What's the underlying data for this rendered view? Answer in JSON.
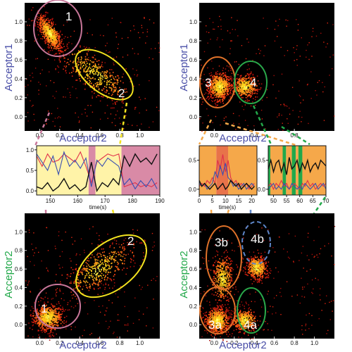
{
  "colors": {
    "acceptor1_label": "#4a4fa8",
    "acceptor2_label_blue": "#4a4fa8",
    "acceptor2_label_green": "#22a84a",
    "cluster1": "#c9779a",
    "cluster2": "#f2e21f",
    "cluster3": "#e0722a",
    "cluster4": "#2aa84a",
    "cluster4b": "#5e86c8",
    "trace_red": "#e0304a",
    "trace_blue": "#3a4fb0",
    "trace_black": "#111111"
  },
  "chart_data": [
    {
      "id": "panel-a",
      "type": "scatter",
      "xlabel": "Acceptor2",
      "ylabel": "Acceptor1",
      "xticks": [
        "0.0",
        "0.2",
        "0.4",
        "0.6",
        "0.8",
        "1.0"
      ],
      "yticks": [
        "0.0",
        "0.2",
        "0.4",
        "0.6",
        "0.8",
        "1.0"
      ],
      "xlim": [
        -0.15,
        1.2
      ],
      "ylim": [
        -0.15,
        1.2
      ],
      "clusters": [
        {
          "label": "1",
          "x": 0.1,
          "y": 0.88,
          "sx": 0.06,
          "sy": 0.09
        },
        {
          "label": "2",
          "x": 0.55,
          "y": 0.45,
          "sx": 0.17,
          "sy": 0.14
        }
      ]
    },
    {
      "id": "panel-b",
      "type": "scatter",
      "xlabel": "Acceptor2",
      "ylabel": "Acceptor1",
      "xticks": [
        "0.0",
        "0.4",
        "0.8"
      ],
      "yticks": [
        "0.0",
        "0.2",
        "0.4",
        "0.6",
        "0.8",
        "1.0"
      ],
      "xlim": [
        -0.15,
        1.2
      ],
      "ylim": [
        -0.15,
        1.2
      ],
      "clusters": [
        {
          "label": "3",
          "x": 0.05,
          "y": 0.32,
          "sx": 0.06,
          "sy": 0.07
        },
        {
          "label": "4",
          "x": 0.3,
          "y": 0.32,
          "sx": 0.06,
          "sy": 0.06
        }
      ]
    },
    {
      "id": "trace-1",
      "type": "line",
      "xlabel": "time(s)",
      "xticks": [
        "150",
        "160",
        "170",
        "180",
        "190"
      ],
      "xlim": [
        145,
        190
      ],
      "yticks": [
        "0.0",
        "0.5",
        "1.0"
      ],
      "ylim": [
        -0.1,
        1.1
      ],
      "series": [
        {
          "color": "#e0304a",
          "x": [
            145,
            147,
            149,
            151,
            153,
            155,
            157,
            159,
            161,
            163,
            165,
            167,
            169,
            171,
            173,
            175,
            177,
            179,
            181,
            183,
            185,
            187,
            189
          ],
          "y": [
            0.85,
            0.6,
            0.9,
            0.7,
            0.75,
            0.9,
            0.8,
            0.7,
            0.95,
            0.6,
            0.2,
            0.7,
            0.8,
            0.9,
            0.85,
            0.9,
            0.1,
            0.15,
            0.2,
            0.1,
            0.15,
            0.1,
            0.2
          ]
        },
        {
          "color": "#3a4fb0",
          "x": [
            145,
            147,
            149,
            151,
            153,
            155,
            157,
            159,
            161,
            163,
            165,
            167,
            169,
            171,
            173,
            175,
            177,
            179,
            181,
            183,
            185,
            187,
            189
          ],
          "y": [
            0.9,
            0.7,
            0.5,
            0.85,
            0.4,
            0.95,
            0.6,
            0.75,
            0.55,
            0.8,
            0.1,
            0.75,
            0.6,
            0.8,
            0.7,
            0.6,
            0.15,
            0.3,
            0.05,
            0.25,
            0.1,
            0.3,
            0.05
          ]
        },
        {
          "color": "#111111",
          "x": [
            145,
            147,
            149,
            151,
            153,
            155,
            157,
            159,
            161,
            163,
            165,
            167,
            169,
            171,
            173,
            175,
            177,
            179,
            181,
            183,
            185,
            187,
            189
          ],
          "y": [
            0.1,
            0.05,
            0.2,
            0.0,
            0.1,
            0.3,
            0.05,
            0.15,
            0.0,
            0.1,
            0.7,
            0.0,
            0.2,
            0.1,
            0.3,
            0.15,
            0.85,
            0.6,
            0.9,
            0.7,
            0.8,
            0.65,
            0.9
          ]
        }
      ],
      "shaded": [
        {
          "from": 145,
          "to": 164,
          "color": "#fff3a8"
        },
        {
          "from": 164,
          "to": 166.5,
          "color": "#d98aa6"
        },
        {
          "from": 166.5,
          "to": 176,
          "color": "#fff3a8"
        },
        {
          "from": 176,
          "to": 190,
          "color": "#d98aa6"
        }
      ]
    },
    {
      "id": "trace-2",
      "type": "line",
      "xlabel": "time(s)",
      "xticks": [
        "0",
        "5",
        "10",
        "15",
        "20"
      ],
      "xlim": [
        0,
        22
      ],
      "yticks": [
        "0.0",
        "0.5"
      ],
      "ylim": [
        -0.1,
        0.75
      ],
      "series": [
        {
          "color": "#e0304a",
          "x": [
            0,
            1,
            2,
            3,
            4,
            5,
            6,
            7,
            8,
            9,
            10,
            11,
            12,
            13,
            14,
            15,
            16,
            17,
            18,
            19,
            20,
            21
          ],
          "y": [
            0.05,
            0.1,
            0.05,
            0.15,
            0.1,
            0.2,
            0.1,
            0.5,
            0.35,
            0.6,
            0.3,
            0.5,
            0.2,
            0.1,
            0.15,
            0.05,
            0.1,
            0.05,
            0.1,
            0.0,
            0.05,
            0.1
          ]
        },
        {
          "color": "#3a4fb0",
          "x": [
            0,
            1,
            2,
            3,
            4,
            5,
            6,
            7,
            8,
            9,
            10,
            11,
            12,
            13,
            14,
            15,
            16,
            17,
            18,
            19,
            20,
            21
          ],
          "y": [
            0.1,
            0.05,
            0.1,
            0.0,
            0.05,
            0.1,
            0.3,
            0.2,
            0.4,
            0.25,
            0.45,
            0.2,
            0.15,
            0.05,
            0.1,
            0.0,
            0.05,
            0.1,
            0.0,
            0.05,
            0.1,
            0.05
          ]
        },
        {
          "color": "#111111",
          "x": [
            0,
            1,
            2,
            3,
            4,
            5,
            6,
            7,
            8,
            9,
            10,
            11,
            12,
            13,
            14,
            15,
            16,
            17,
            18,
            19,
            20,
            21
          ],
          "y": [
            0.15,
            0.05,
            0.1,
            0.05,
            0.0,
            0.05,
            0.1,
            0.0,
            0.05,
            0.1,
            0.0,
            0.05,
            0.15,
            0.1,
            0.05,
            0.1,
            0.0,
            0.05,
            0.1,
            0.05,
            0.0,
            0.05
          ]
        }
      ],
      "shaded": [
        {
          "from": 0,
          "to": 6.5,
          "color": "#f5a84a"
        },
        {
          "from": 6.5,
          "to": 11,
          "color": "#e8734a"
        },
        {
          "from": 11,
          "to": 22,
          "color": "#f5a84a"
        }
      ]
    },
    {
      "id": "trace-3",
      "type": "line",
      "xlabel": "",
      "xticks": [
        "50",
        "55",
        "60",
        "65",
        "70"
      ],
      "xlim": [
        48,
        70
      ],
      "yticks": [
        "0.0",
        "0.5"
      ],
      "ylim": [
        -0.1,
        0.75
      ],
      "series": [
        {
          "color": "#e0304a",
          "x": [
            48,
            49,
            50,
            51,
            52,
            53,
            54,
            55,
            56,
            57,
            58,
            59,
            60,
            61,
            62,
            63,
            64,
            65,
            66,
            67,
            68,
            69,
            70
          ],
          "y": [
            0.05,
            0.1,
            0.0,
            0.1,
            0.05,
            0.15,
            0.05,
            0.1,
            0.0,
            0.05,
            0.1,
            0.05,
            0.0,
            0.1,
            0.05,
            0.15,
            0.05,
            0.1,
            0.0,
            0.05,
            0.1,
            0.05,
            0.1
          ]
        },
        {
          "color": "#3a4fb0",
          "x": [
            48,
            49,
            50,
            51,
            52,
            53,
            54,
            55,
            56,
            57,
            58,
            59,
            60,
            61,
            62,
            63,
            64,
            65,
            66,
            67,
            68,
            69,
            70
          ],
          "y": [
            0.0,
            0.05,
            0.1,
            0.0,
            0.05,
            0.0,
            0.1,
            0.05,
            0.0,
            0.1,
            0.05,
            0.0,
            0.05,
            0.0,
            0.1,
            0.05,
            0.0,
            0.05,
            0.1,
            0.0,
            0.05,
            0.1,
            0.0
          ]
        },
        {
          "color": "#111111",
          "x": [
            48,
            49,
            50,
            51,
            52,
            53,
            54,
            55,
            56,
            57,
            58,
            59,
            60,
            61,
            62,
            63,
            64,
            65,
            66,
            67,
            68,
            69,
            70
          ],
          "y": [
            0.35,
            0.5,
            0.3,
            0.45,
            0.5,
            0.3,
            0.45,
            0.25,
            0.55,
            0.35,
            0.4,
            0.5,
            0.3,
            0.45,
            0.35,
            0.5,
            0.3,
            0.4,
            0.45,
            0.35,
            0.5,
            0.45,
            0.4
          ]
        }
      ],
      "shaded": [
        {
          "from": 48,
          "to": 48.8,
          "color": "#22a84a"
        },
        {
          "from": 48.8,
          "to": 53.5,
          "color": "#f5a84a"
        },
        {
          "from": 53.5,
          "to": 54.8,
          "color": "#22a84a"
        },
        {
          "from": 54.8,
          "to": 57,
          "color": "#f5a84a"
        },
        {
          "from": 57,
          "to": 58.5,
          "color": "#22a84a"
        },
        {
          "from": 58.5,
          "to": 59.5,
          "color": "#f5a84a"
        },
        {
          "from": 59.5,
          "to": 61,
          "color": "#22a84a"
        },
        {
          "from": 61,
          "to": 70,
          "color": "#f5a84a"
        }
      ]
    },
    {
      "id": "panel-c",
      "type": "scatter",
      "xlabel": "Acceptor2",
      "ylabel": "Acceptor2",
      "xticks": [
        "0.0",
        "0.2",
        "0.4",
        "0.6",
        "0.8",
        "1.0"
      ],
      "yticks": [
        "0.0",
        "0.2",
        "0.4",
        "0.6",
        "0.8",
        "1.0"
      ],
      "xlim": [
        -0.15,
        1.2
      ],
      "ylim": [
        -0.15,
        1.2
      ],
      "clusters": [
        {
          "label": "1",
          "x": 0.08,
          "y": 0.08,
          "sx": 0.07,
          "sy": 0.07
        },
        {
          "label": "2",
          "x": 0.58,
          "y": 0.6,
          "sx": 0.17,
          "sy": 0.14
        }
      ]
    },
    {
      "id": "panel-d",
      "type": "scatter",
      "xlabel": "Acceptor2",
      "ylabel": "Acceptor2",
      "xticks": [
        "0.0",
        "0.2",
        "0.4",
        "0.6",
        "0.8",
        "1.0"
      ],
      "yticks": [
        "0.0",
        "0.2",
        "0.4",
        "0.6",
        "0.8",
        "1.0"
      ],
      "xlim": [
        -0.15,
        1.2
      ],
      "ylim": [
        -0.15,
        1.2
      ],
      "clusters": [
        {
          "label": "3a",
          "x": 0.03,
          "y": 0.05,
          "sx": 0.06,
          "sy": 0.07
        },
        {
          "label": "3b",
          "x": 0.08,
          "y": 0.5,
          "sx": 0.05,
          "sy": 0.12
        },
        {
          "label": "4a",
          "x": 0.3,
          "y": 0.05,
          "sx": 0.06,
          "sy": 0.06
        },
        {
          "label": "4b",
          "x": 0.42,
          "y": 0.62,
          "sx": 0.05,
          "sy": 0.06
        }
      ]
    }
  ]
}
